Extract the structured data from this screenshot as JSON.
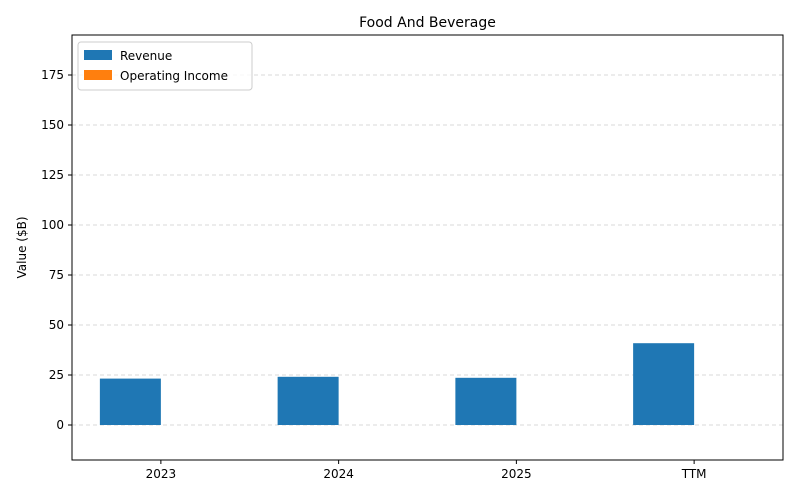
{
  "chart_data": {
    "type": "bar",
    "title": "Food And Beverage",
    "xlabel": "",
    "ylabel": "Value ($B)",
    "categories": [
      "2023",
      "2024",
      "2025",
      "TTM"
    ],
    "series": [
      {
        "name": "Revenue",
        "values": [
          23.2,
          24.1,
          23.6,
          40.9
        ],
        "color": "#1f77b4"
      },
      {
        "name": "Operating Income",
        "values": [
          0,
          0,
          0,
          0
        ],
        "color": "#ff7f0e"
      }
    ],
    "ylim": [
      -17.5,
      195
    ],
    "yticks": [
      0,
      25,
      50,
      75,
      100,
      125,
      150,
      175
    ],
    "grid": true,
    "legend_position": "top-left"
  }
}
